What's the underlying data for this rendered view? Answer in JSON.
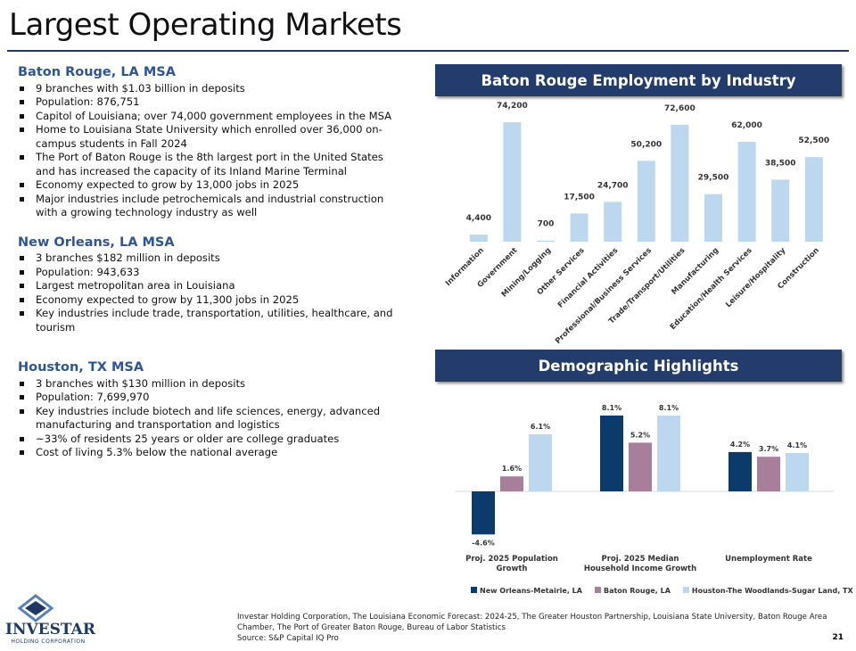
{
  "title": "Largest Operating Markets",
  "sections": [
    {
      "heading": "Baton Rouge, LA MSA",
      "bullets": [
        "9 branches with $1.03 billion in deposits",
        "Population: 876,751",
        "Capitol of Louisiana; over 74,000 government employees in the MSA",
        "Home to Louisiana State University which enrolled over 36,000 on-campus students in Fall 2024",
        "The Port of Baton Rouge is the 8th largest port in the United States and has increased the capacity of its Inland Marine Terminal",
        "Economy expected to grow by 13,000 jobs in 2025",
        "Major industries include petrochemicals and industrial construction with a growing technology industry as well"
      ]
    },
    {
      "heading": "New Orleans, LA MSA",
      "bullets": [
        "3 branches $182 million in deposits",
        "Population: 943,633",
        "Largest metropolitan area in Louisiana",
        "Economy expected to grow by 11,300 jobs in 2025",
        "Key industries include trade, transportation, utilities, healthcare, and tourism"
      ]
    },
    {
      "heading": "Houston, TX MSA",
      "bullets": [
        "3 branches with $130 million in deposits",
        "Population: 7,699,970",
        "Key industries include biotech and life sciences, energy, advanced manufacturing and transportation and logistics",
        "~33% of residents 25 years or older are college graduates",
        "Cost of living 5.3% below the national average"
      ]
    }
  ],
  "chart_data": [
    {
      "type": "bar",
      "title": "Baton Rouge Employment by Industry",
      "categories": [
        "Information",
        "Government",
        "Mining/Logging",
        "Other Services",
        "Financial Activities",
        "Professional/Business Services",
        "Trade/Transport/Utilities",
        "Manufacturing",
        "Education/Health Services",
        "Leisure/Hospitality",
        "Construction"
      ],
      "values": [
        4400,
        74200,
        700,
        17500,
        24700,
        50200,
        72600,
        29500,
        62000,
        38500,
        52500
      ],
      "value_labels": [
        "4,400",
        "74,200",
        "700",
        "17,500",
        "24,700",
        "50,200",
        "72,600",
        "29,500",
        "62,000",
        "38,500",
        "52,500"
      ],
      "color": "#bdd7ee"
    },
    {
      "type": "grouped_bar",
      "title": "Demographic Highlights",
      "categories": [
        "Proj. 2025 Population Growth",
        "Proj. 2025 Median Household Income Growth",
        "Unemployment Rate"
      ],
      "series": [
        {
          "name": "New Orleans-Metairie, LA",
          "color": "#0b3a6b",
          "values": [
            -4.6,
            8.1,
            4.2
          ],
          "value_labels": [
            "-4.6%",
            "8.1%",
            "4.2%"
          ]
        },
        {
          "name": "Baton Rouge, LA",
          "color": "#a87f9b",
          "values": [
            1.6,
            5.2,
            3.7
          ],
          "value_labels": [
            "1.6%",
            "5.2%",
            "3.7%"
          ]
        },
        {
          "name": "Houston-The Woodlands-Sugar Land, TX",
          "color": "#bdd7ee",
          "values": [
            6.1,
            8.1,
            4.1
          ],
          "value_labels": [
            "6.1%",
            "8.1%",
            "4.1%"
          ]
        }
      ],
      "legend": "bottom"
    }
  ],
  "logo": {
    "name": "INVESTAR",
    "subtitle": "HOLDING CORPORATION"
  },
  "footer": {
    "sources": "Investar Holding Corporation, The Louisiana Economic Forecast: 2024-25, The Greater Houston Partnership, Louisiana State University, Baton Rouge Area Chamber, The Port of Greater Baton Rouge, Bureau of Labor Statistics",
    "source": "Source: S&P Capital IQ Pro",
    "page": "21"
  }
}
